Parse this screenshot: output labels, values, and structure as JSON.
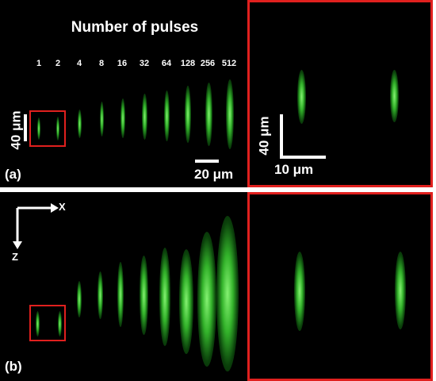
{
  "title": "Number of pulses",
  "pulse_counts": [
    "1",
    "2",
    "4",
    "8",
    "16",
    "32",
    "64",
    "128",
    "256",
    "512"
  ],
  "panel_a": {
    "label": "(a)",
    "scale_vertical": "40 μm",
    "scale_horizontal": "20 μm"
  },
  "panel_a_zoom": {
    "scale_vertical": "40 μm",
    "scale_horizontal": "10 μm"
  },
  "panel_b": {
    "label": "(b)",
    "axis_x": "X",
    "axis_z": "Z"
  },
  "colors": {
    "frame": "#e0201e",
    "streak": "#3fd23a",
    "background": "#000000"
  }
}
